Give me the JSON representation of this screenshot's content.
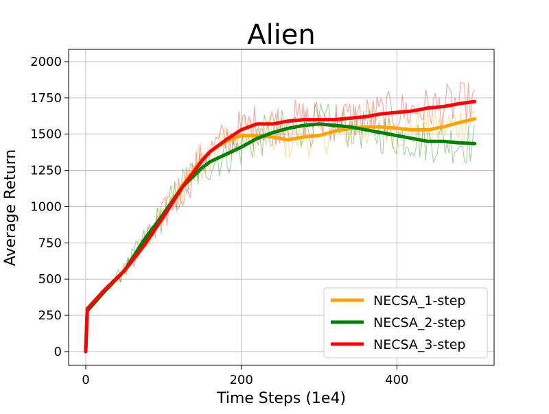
{
  "chart_data": {
    "type": "line",
    "title": "Alien",
    "xlabel": "Time Steps (1e4)",
    "ylabel": "Average Return",
    "xlim": [
      -22,
      525
    ],
    "ylim": [
      -95,
      2085
    ],
    "xticks": [
      0,
      200,
      400
    ],
    "yticks": [
      0,
      250,
      500,
      750,
      1000,
      1250,
      1500,
      1750,
      2000
    ],
    "grid": true,
    "legend_position": "lower-right",
    "x": [
      0,
      2,
      25,
      50,
      75,
      100,
      125,
      150,
      160,
      180,
      200,
      220,
      240,
      260,
      280,
      300,
      320,
      340,
      360,
      380,
      400,
      420,
      440,
      460,
      480,
      500
    ],
    "series": [
      {
        "name": "NECSA_1-step",
        "color": "#FFA500",
        "values": [
          0,
          280,
          420,
          560,
          750,
          950,
          1150,
          1330,
          1380,
          1450,
          1490,
          1490,
          1480,
          1460,
          1480,
          1490,
          1520,
          1540,
          1550,
          1550,
          1540,
          1530,
          1530,
          1550,
          1580,
          1605
        ]
      },
      {
        "name": "NECSA_2-step",
        "color": "#008000",
        "values": [
          0,
          280,
          420,
          560,
          770,
          950,
          1140,
          1270,
          1310,
          1360,
          1410,
          1470,
          1510,
          1540,
          1560,
          1570,
          1560,
          1550,
          1530,
          1510,
          1490,
          1470,
          1450,
          1450,
          1440,
          1435
        ]
      },
      {
        "name": "NECSA_3-step",
        "color": "#FF0000",
        "values": [
          0,
          295,
          430,
          560,
          730,
          930,
          1140,
          1320,
          1380,
          1460,
          1530,
          1570,
          1570,
          1590,
          1600,
          1600,
          1600,
          1610,
          1620,
          1640,
          1650,
          1660,
          1680,
          1690,
          1710,
          1725
        ]
      }
    ]
  }
}
